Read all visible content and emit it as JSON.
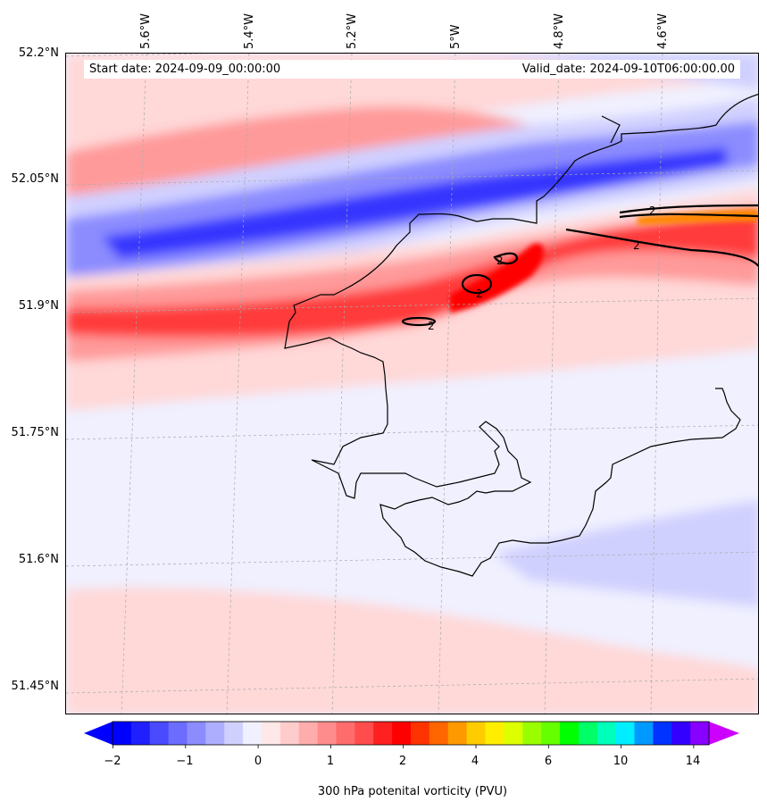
{
  "map": {
    "variable": "300 hPa potential vorticity",
    "region": "South-west Wales coast",
    "start_date_label": "Start date: 2024-09-09_00:00:00",
    "valid_date_label": "Valid_date: 2024-09-10T06:00:00.00",
    "lat_labels": [
      "52.2°N",
      "52.05°N",
      "51.9°N",
      "51.75°N",
      "51.6°N",
      "51.45°N"
    ],
    "lon_labels": [
      "5.6°W",
      "5.4°W",
      "5.2°W",
      "5°W",
      "4.8°W",
      "4.6°W"
    ],
    "contour_label": "2",
    "colors": {
      "strong_negative": "#3434ff",
      "negative": "#8c8cff",
      "weak_negative": "#d0d0ff",
      "near_zero": "#f0f0ff",
      "weak_positive": "#ffd8d8",
      "positive": "#ff9a9a",
      "strong_positive": "#ff3a3a",
      "orange": "#ff8800",
      "coast": "#000000"
    }
  },
  "colorbar": {
    "label": "300 hPa potenital vorticity (PVU)",
    "tick_labels": [
      "−2",
      "−1",
      "0",
      "1",
      "2",
      "4",
      "6",
      "10",
      "14"
    ],
    "colors": [
      "#0000ff",
      "#2020ff",
      "#4a4aff",
      "#6c6cff",
      "#8c8cff",
      "#aeaeff",
      "#d0d0ff",
      "#f0f0ff",
      "#ffe8e8",
      "#ffcccc",
      "#ffacac",
      "#ff8c8c",
      "#ff6c6c",
      "#ff4c4c",
      "#ff2020",
      "#ff0000",
      "#ff3300",
      "#ff6600",
      "#ff9900",
      "#ffcc00",
      "#ffee00",
      "#ddff00",
      "#99ff00",
      "#66ff00",
      "#00ff00",
      "#00ff66",
      "#00ffbb",
      "#00eeff",
      "#0099ff",
      "#0033ff",
      "#3300ff",
      "#8800ff"
    ],
    "under_color": "#0000ff",
    "over_color": "#cc00ff"
  }
}
